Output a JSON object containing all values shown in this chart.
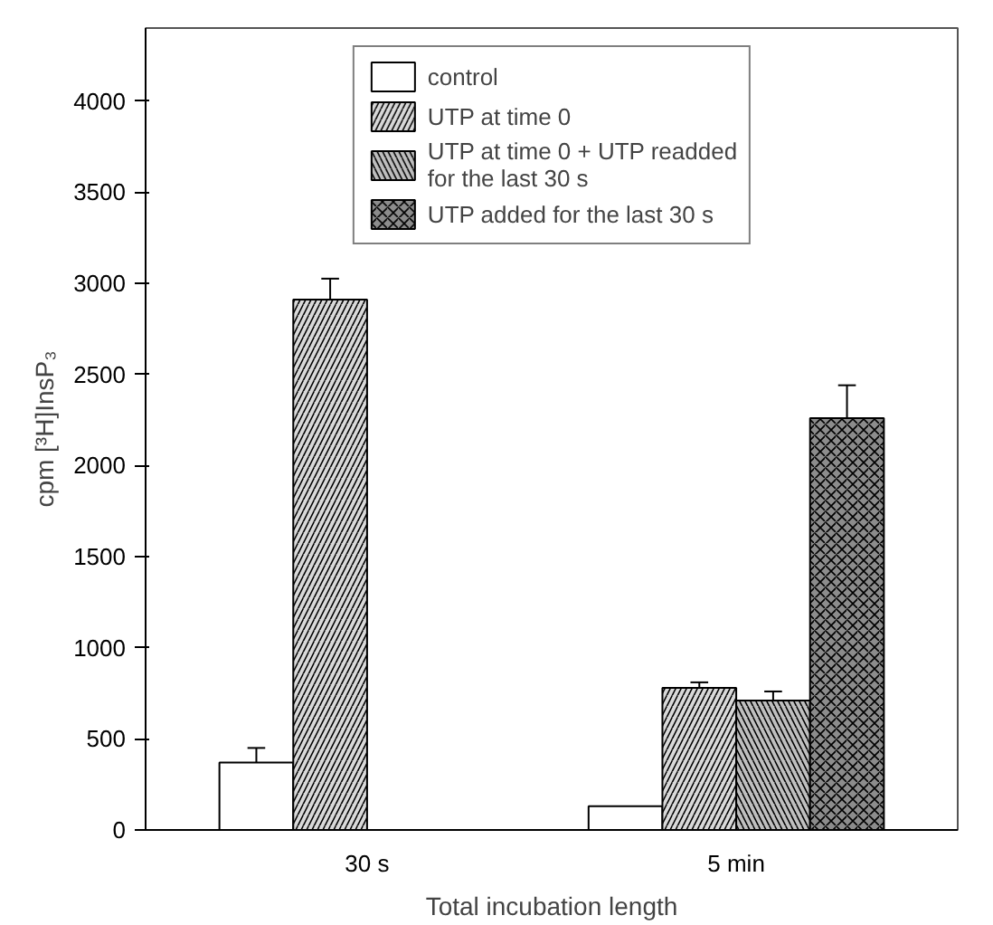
{
  "chart_data": {
    "type": "bar",
    "xlabel": "Total incubation length",
    "ylabel": "cpm [³H]InsP₃",
    "categories": [
      "30 s",
      "5 min"
    ],
    "series": [
      {
        "name": "control",
        "color": "#ffffff",
        "values": [
          370,
          130
        ],
        "errors": [
          80,
          null
        ]
      },
      {
        "name": "UTP at time 0",
        "color": "#d9d9d9",
        "values": [
          2910,
          780
        ],
        "errors": [
          115,
          30
        ]
      },
      {
        "name": "UTP at time 0 + UTP readded for the last 30 s",
        "color": "#bfbfbf",
        "values": [
          null,
          710
        ],
        "errors": [
          null,
          50
        ]
      },
      {
        "name": "UTP added for the last 30 s",
        "color": "#8c8c8c",
        "values": [
          null,
          2260
        ],
        "errors": [
          null,
          180
        ]
      }
    ],
    "ylim": [
      0,
      4400
    ],
    "yticks": [
      0,
      500,
      1000,
      1500,
      2000,
      2500,
      3000,
      3500,
      4000
    ],
    "grid": false,
    "legend": "top"
  }
}
